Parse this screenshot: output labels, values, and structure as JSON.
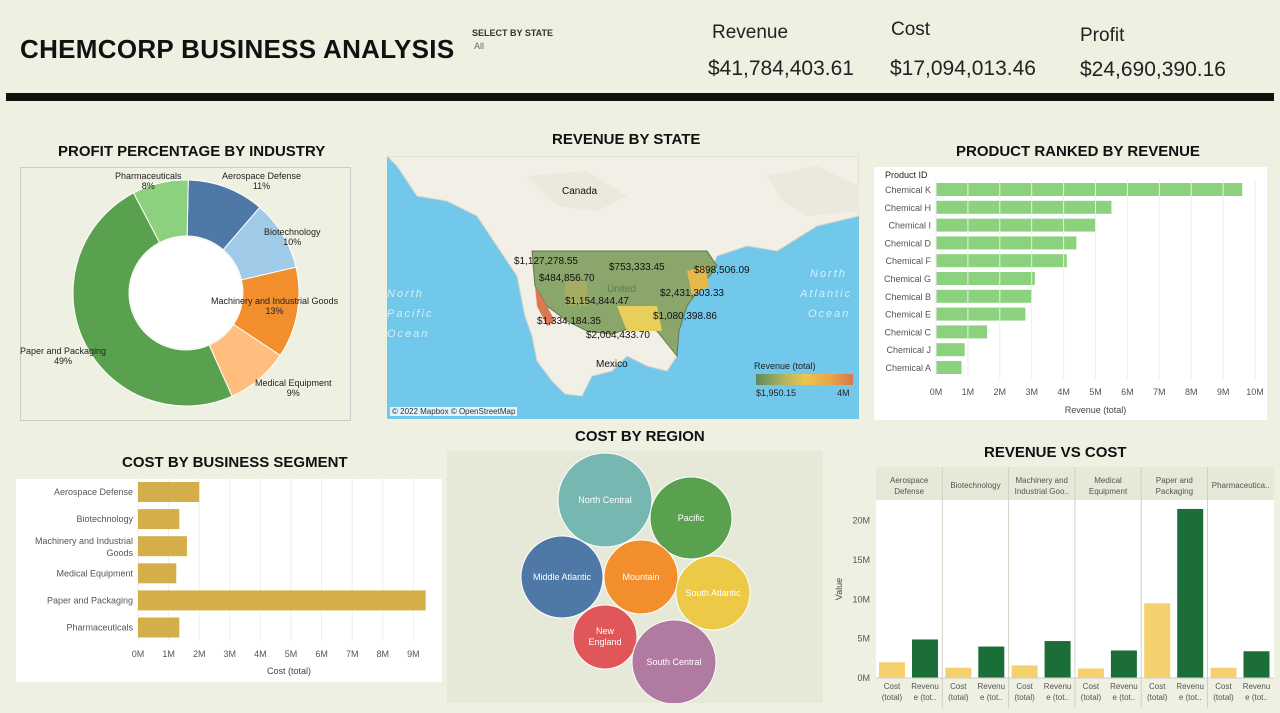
{
  "header": {
    "title": "CHEMCORP  BUSINESS ANALYSIS",
    "filter_label": "SELECT BY STATE",
    "filter_value": "All",
    "kpis": [
      {
        "label": "Revenue",
        "value": "$41,784,403.61"
      },
      {
        "label": "Cost",
        "value": "$17,094,013.46"
      },
      {
        "label": "Profit",
        "value": "$24,690,390.16"
      }
    ]
  },
  "donut": {
    "title": "PROFIT PERCENTAGE BY INDUSTRY",
    "slices": [
      {
        "name": "Aerospace Defense",
        "pct": "11%",
        "value": 11,
        "color": "#4e79a7"
      },
      {
        "name": "Biotechnology",
        "pct": "10%",
        "value": 10,
        "color": "#a0cbe8"
      },
      {
        "name": "Machinery and Industrial Goods",
        "pct": "13%",
        "value": 13,
        "color": "#f28e2b"
      },
      {
        "name": "Medical Equipment",
        "pct": "9%",
        "value": 9,
        "color": "#ffbe7d"
      },
      {
        "name": "Paper and Packaging",
        "pct": "49%",
        "value": 49,
        "color": "#59a14f"
      },
      {
        "name": "Pharmaceuticals",
        "pct": "8%",
        "value": 8,
        "color": "#8cd17d"
      }
    ]
  },
  "map": {
    "title": "REVENUE BY STATE",
    "labels": {
      "canada": "Canada",
      "mexico": "Mexico",
      "united": "United",
      "north_pacific_1": "North",
      "north_pacific_2": "Pacific",
      "north_pacific_3": "Ocean",
      "north_atlantic_1": "North",
      "north_atlantic_2": "Atlantic",
      "north_atlantic_3": "Ocean"
    },
    "values": [
      "$1,127,278.55",
      "$484,856.70",
      "$753,333.45",
      "$898,506.09",
      "$2,431,303.33",
      "$1,154,844.47",
      "$1,080,398.86",
      "$1,334,184.35",
      "$2,004,433.70"
    ],
    "legend_title": "Revenue (total)",
    "legend_min": "$1,950.15",
    "legend_max": "4M",
    "credit": "© 2022 Mapbox © OpenStreetMap"
  },
  "products": {
    "title": "PRODUCT RANKED BY REVENUE",
    "header": "Product ID",
    "xlabel": "Revenue (total)",
    "ticks": [
      "0M",
      "1M",
      "2M",
      "3M",
      "4M",
      "5M",
      "6M",
      "7M",
      "8M",
      "9M",
      "10M"
    ],
    "color": "#8cd17d"
  },
  "segments": {
    "title": "COST BY BUSINESS SEGMENT",
    "xlabel": "Cost (total)",
    "ticks": [
      "0M",
      "1M",
      "2M",
      "3M",
      "4M",
      "5M",
      "6M",
      "7M",
      "8M",
      "9M"
    ],
    "color": "#d4ae48"
  },
  "regions": {
    "title": "COST BY REGION",
    "bubbles": [
      {
        "name": "North Central",
        "color": "#76b7b2"
      },
      {
        "name": "Pacific",
        "color": "#59a14f"
      },
      {
        "name": "Middle Atlantic",
        "color": "#4e79a7"
      },
      {
        "name": "Mountain",
        "color": "#f28e2b"
      },
      {
        "name": "South Atlantic",
        "color": "#edc948"
      },
      {
        "name": "New England",
        "color": "#e15759"
      },
      {
        "name": "South Central",
        "color": "#b07aa1"
      }
    ]
  },
  "revcost": {
    "title": "REVENUE VS COST",
    "ylabel": "Value",
    "yticks": [
      "20M",
      "15M",
      "10M",
      "5M",
      "0M"
    ],
    "cost_label": "Cost (total)",
    "revenue_label": "Revenue (total)",
    "cost_color": "#f5d06e",
    "revenue_color": "#1b6e38"
  },
  "chart_data": [
    {
      "type": "pie",
      "title": "PROFIT PERCENTAGE BY INDUSTRY",
      "categories": [
        "Aerospace Defense",
        "Biotechnology",
        "Machinery and Industrial Goods",
        "Medical Equipment",
        "Paper and Packaging",
        "Pharmaceuticals"
      ],
      "values": [
        11,
        10,
        13,
        9,
        49,
        8
      ]
    },
    {
      "type": "bar",
      "title": "PRODUCT RANKED BY REVENUE",
      "categories": [
        "Chemical K",
        "Chemical H",
        "Chemical I",
        "Chemical D",
        "Chemical F",
        "Chemical G",
        "Chemical B",
        "Chemical E",
        "Chemical C",
        "Chemical J",
        "Chemical A"
      ],
      "values": [
        9.6,
        5.5,
        5.0,
        4.4,
        4.1,
        3.1,
        3.0,
        2.8,
        1.6,
        0.9,
        0.8
      ],
      "xlabel": "Revenue (total)",
      "ylabel": "Product ID",
      "xlim": [
        0,
        10
      ]
    },
    {
      "type": "bar",
      "title": "COST BY BUSINESS SEGMENT",
      "categories": [
        "Aerospace Defense",
        "Biotechnology",
        "Machinery and Industrial Goods",
        "Medical Equipment",
        "Paper and Packaging",
        "Pharmaceuticals"
      ],
      "values": [
        2.0,
        1.35,
        1.6,
        1.25,
        9.4,
        1.35
      ],
      "xlabel": "Cost (total)",
      "xlim": [
        0,
        9.5
      ]
    },
    {
      "type": "bar",
      "title": "REVENUE VS COST",
      "categories": [
        "Aerospace Defense",
        "Biotechnology",
        "Machinery and Industrial Goods",
        "Medical Equipment",
        "Paper and Packaging",
        "Pharmaceuticals"
      ],
      "category_labels": [
        "Aerospace Defense",
        "Biotechnology",
        "Machinery and Industrial Goo..",
        "Medical Equipment",
        "Paper and Packaging",
        "Pharmaceutica.."
      ],
      "series": [
        {
          "name": "Cost (total)",
          "values": [
            2.0,
            1.3,
            1.6,
            1.2,
            9.5,
            1.3
          ]
        },
        {
          "name": "Revenue (total)",
          "values": [
            4.9,
            4.0,
            4.7,
            3.5,
            21.5,
            3.4
          ]
        }
      ],
      "ylabel": "Value",
      "ylim": [
        0,
        22
      ]
    }
  ]
}
